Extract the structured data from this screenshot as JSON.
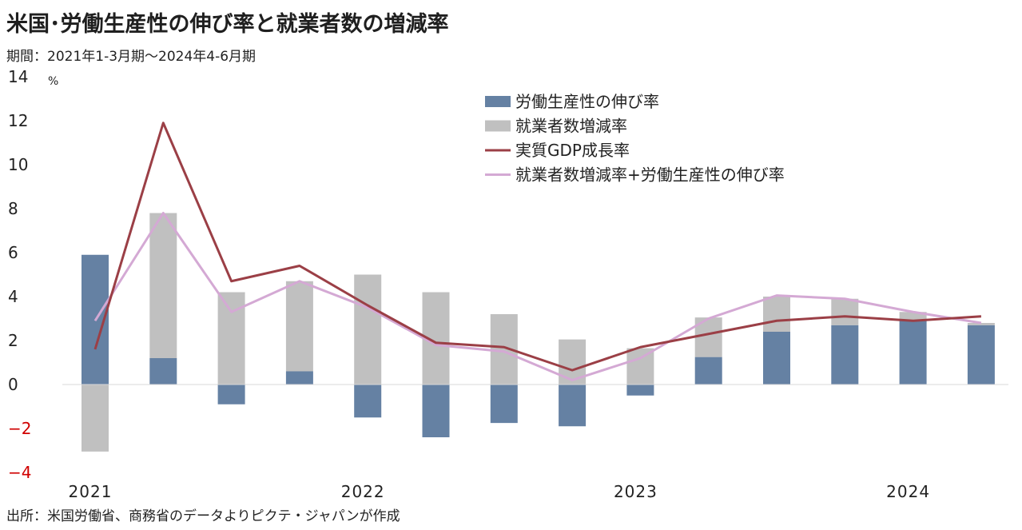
{
  "header": {
    "title": "米国･労働生産性の伸び率と就業者数の増減率",
    "period": "期間：2021年1-3月期～2024年4-6月期"
  },
  "footer": {
    "source": "出所：米国労働省、商務省のデータよりピクテ・ジャパンが作成"
  },
  "chart_data": {
    "type": "bar",
    "unit": "%",
    "ylim": [
      -4,
      14
    ],
    "yticks": [
      -4,
      -2,
      0,
      2,
      4,
      6,
      8,
      10,
      12,
      14
    ],
    "ytick_labels": [
      "−4",
      "−2",
      "0",
      "2",
      "4",
      "6",
      "8",
      "10",
      "12",
      "14"
    ],
    "x_group_labels": [
      "2021",
      "2022",
      "2023",
      "2024"
    ],
    "x_group_label_quarter_index": [
      0,
      4,
      8,
      12
    ],
    "categories": [
      "2021 Q1",
      "2021 Q2",
      "2021 Q3",
      "2021 Q4",
      "2022 Q1",
      "2022 Q2",
      "2022 Q3",
      "2022 Q4",
      "2023 Q1",
      "2023 Q2",
      "2023 Q3",
      "2023 Q4",
      "2024 Q1",
      "2024 Q2"
    ],
    "legend": [
      "労働生産性の伸び率",
      "就業者数増減率",
      "実質GDP成長率",
      "就業者数増減率+労働生産性の伸び率"
    ],
    "legend_placement": "top-right",
    "series": [
      {
        "name": "労働生産性の伸び率",
        "kind": "bar",
        "color": "#6581a3",
        "values": [
          5.9,
          1.2,
          -0.9,
          0.6,
          -1.5,
          -2.4,
          -1.75,
          -1.9,
          -0.5,
          1.25,
          2.4,
          2.7,
          2.9,
          2.7
        ]
      },
      {
        "name": "就業者数増減率",
        "kind": "bar",
        "color": "#c0c0c0",
        "values": [
          -3.05,
          6.6,
          4.2,
          4.1,
          5.0,
          4.2,
          3.2,
          2.05,
          1.65,
          1.8,
          1.6,
          1.2,
          0.4,
          0.1
        ]
      },
      {
        "name": "実質GDP成長率",
        "kind": "line",
        "color": "#9b3f46",
        "values": [
          1.6,
          11.9,
          4.7,
          5.4,
          3.6,
          1.9,
          1.7,
          0.65,
          1.7,
          2.3,
          2.9,
          3.1,
          2.9,
          3.1
        ]
      },
      {
        "name": "就業者数増減率+労働生産性の伸び率",
        "kind": "line",
        "color": "#d4a9d4",
        "values": [
          2.9,
          7.8,
          3.3,
          4.7,
          3.5,
          1.8,
          1.5,
          0.2,
          1.2,
          3.0,
          4.05,
          3.9,
          3.3,
          2.8
        ]
      }
    ]
  }
}
